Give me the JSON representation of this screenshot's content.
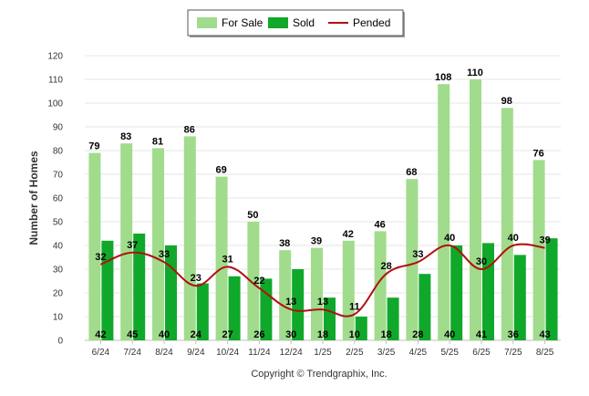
{
  "chart_data": {
    "type": "bar",
    "categories": [
      "6/24",
      "7/24",
      "8/24",
      "9/24",
      "10/24",
      "11/24",
      "12/24",
      "1/25",
      "2/25",
      "3/25",
      "4/25",
      "5/25",
      "6/25",
      "7/25",
      "8/25"
    ],
    "series": [
      {
        "name": "For Sale",
        "type": "bar",
        "color": "#a0dc8c",
        "values": [
          79,
          83,
          81,
          86,
          69,
          50,
          38,
          39,
          42,
          46,
          68,
          108,
          110,
          98,
          76
        ]
      },
      {
        "name": "Sold",
        "type": "bar",
        "color": "#10a82a",
        "values": [
          42,
          45,
          40,
          24,
          27,
          26,
          30,
          18,
          10,
          18,
          28,
          40,
          41,
          36,
          43
        ]
      },
      {
        "name": "Pended",
        "type": "line",
        "color": "#b01010",
        "values": [
          32,
          37,
          33,
          23,
          31,
          22,
          13,
          13,
          11,
          28,
          33,
          40,
          30,
          40,
          39
        ]
      }
    ],
    "ylabel": "Number of Homes",
    "xlabel": "",
    "ylim": [
      0,
      120
    ],
    "yticks": [
      0,
      10,
      20,
      30,
      40,
      50,
      60,
      70,
      80,
      90,
      100,
      110,
      120
    ],
    "legend_position": "top-center",
    "grid": true
  },
  "footer": {
    "credit": "Copyright © Trendgraphix, Inc."
  }
}
